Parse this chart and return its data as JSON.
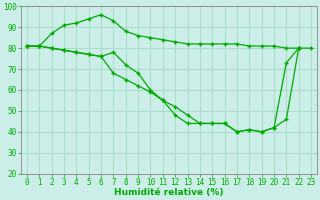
{
  "xlabel": "Humidité relative (%)",
  "background_color": "#cceee8",
  "grid_color": "#aaddcc",
  "line_color": "#00aa00",
  "x": [
    0,
    1,
    2,
    3,
    4,
    5,
    6,
    7,
    8,
    9,
    10,
    11,
    12,
    13,
    14,
    15,
    16,
    17,
    18,
    19,
    20,
    21,
    22,
    23
  ],
  "line1": [
    81,
    81,
    87,
    91,
    92,
    94,
    96,
    93,
    88,
    86,
    85,
    84,
    83,
    82,
    82,
    82,
    82,
    82,
    81,
    81,
    81,
    80,
    80,
    80
  ],
  "line2": [
    81,
    81,
    80,
    79,
    78,
    77,
    76,
    68,
    65,
    62,
    59,
    55,
    52,
    48,
    44,
    44,
    44,
    40,
    41,
    40,
    42,
    73,
    80,
    null
  ],
  "line3": [
    81,
    81,
    80,
    79,
    78,
    77,
    76,
    78,
    72,
    68,
    60,
    55,
    48,
    44,
    44,
    44,
    44,
    40,
    41,
    40,
    42,
    46,
    80,
    null
  ],
  "ylim": [
    20,
    100
  ],
  "xlim": [
    -0.5,
    23.5
  ],
  "yticks": [
    20,
    30,
    40,
    50,
    60,
    70,
    80,
    90,
    100
  ],
  "xticks": [
    0,
    1,
    2,
    3,
    4,
    5,
    6,
    7,
    8,
    9,
    10,
    11,
    12,
    13,
    14,
    15,
    16,
    17,
    18,
    19,
    20,
    21,
    22,
    23
  ],
  "tick_fontsize": 5.5,
  "xlabel_fontsize": 6.5
}
